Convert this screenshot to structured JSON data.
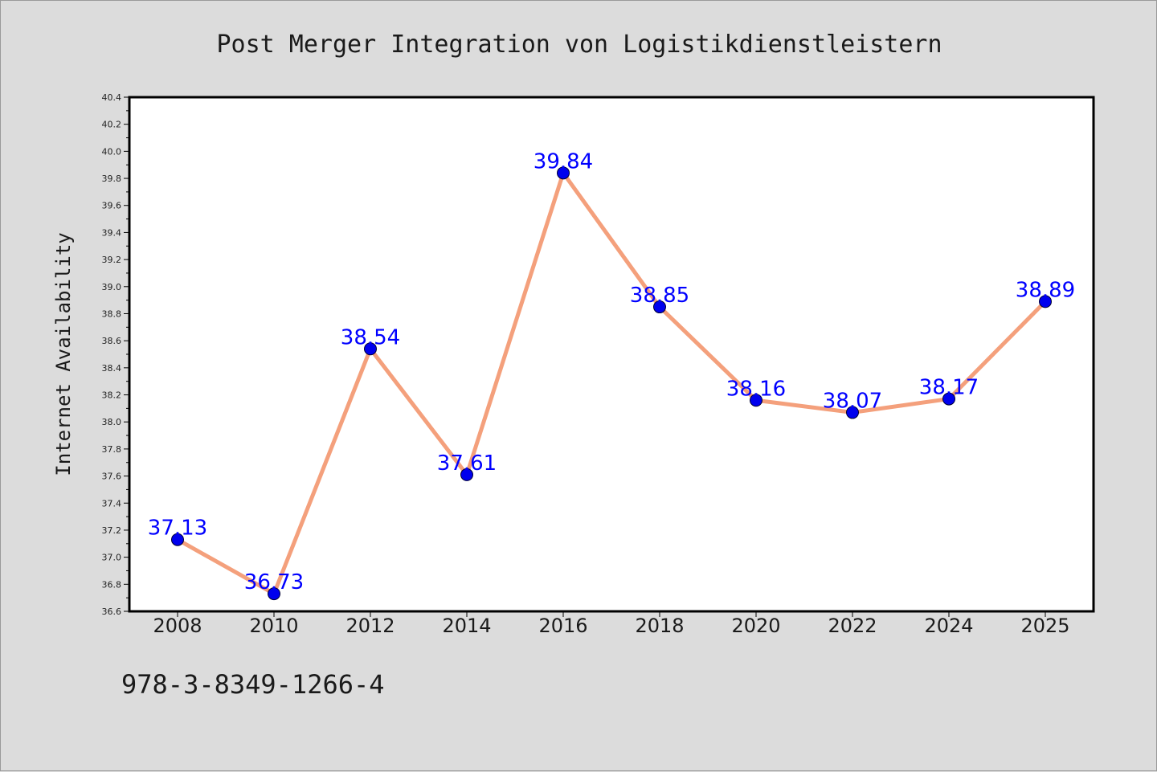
{
  "chart_data": {
    "type": "line",
    "title": "Post Merger Integration von Logistikdienstleistern",
    "xlabel": "",
    "ylabel": "Internet Availability",
    "categories": [
      "2008",
      "2010",
      "2012",
      "2014",
      "2016",
      "2018",
      "2020",
      "2022",
      "2024",
      "2025"
    ],
    "series": [
      {
        "values": [
          37.13,
          36.73,
          38.54,
          37.61,
          39.84,
          38.85,
          38.16,
          38.07,
          38.17,
          38.89
        ]
      }
    ],
    "data_labels": [
      "37.13",
      "36.73",
      "38.54",
      "37.61",
      "39.84",
      "38.85",
      "38.16",
      "38.07",
      "38.17",
      "38.89"
    ],
    "ylim": [
      36.6,
      40.4
    ],
    "yticks": [
      "36.6",
      "36.8",
      "37.0",
      "37.2",
      "37.4",
      "37.6",
      "37.8",
      "38.0",
      "38.2",
      "38.4",
      "38.6",
      "38.8",
      "39.0",
      "39.2",
      "39.4",
      "39.6",
      "39.8",
      "40.0",
      "40.2",
      "40.4"
    ],
    "grid": false,
    "line_color": "#f4a07c",
    "marker_color": "#0000ee",
    "label_color": "#0000ff"
  },
  "footer": {
    "isbn": "978-3-8349-1266-4"
  }
}
